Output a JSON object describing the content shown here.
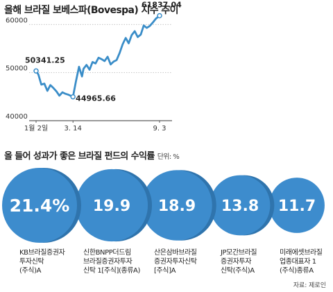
{
  "line_chart": {
    "title": "올해 브라질 보베스파(Bovespa) 지수 추이",
    "chart_data": {
      "type": "line",
      "y_ticks": [
        "60000",
        "50000",
        "40000"
      ],
      "ylim": [
        40000,
        62500
      ],
      "x_labels": [
        "1월 2일",
        "3. 14",
        "9. 3"
      ],
      "annotations": [
        {
          "label": "50341.25",
          "x": 1,
          "y": 50341.25
        },
        {
          "label": "44965.66",
          "x": 50,
          "y": 44965.66
        },
        {
          "label": "61837.04",
          "x": 165,
          "y": 61837.04
        }
      ],
      "series": [
        {
          "color": "#3a8dc8",
          "x": [
            1,
            4,
            8,
            12,
            16,
            20,
            24,
            28,
            32,
            36,
            40,
            44,
            48,
            50,
            54,
            58,
            62,
            64,
            68,
            72,
            76,
            80,
            84,
            88,
            92,
            96,
            100,
            104,
            108,
            112,
            116,
            120,
            124,
            128,
            132,
            136,
            140,
            144,
            148,
            152,
            156,
            160,
            165
          ],
          "y": [
            50341.25,
            49600,
            47500,
            47700,
            46200,
            47400,
            46800,
            46100,
            45200,
            45900,
            45600,
            45400,
            45100,
            44965.66,
            48200,
            51200,
            49200,
            50800,
            51600,
            50600,
            52200,
            51900,
            53100,
            52800,
            52400,
            53300,
            51700,
            52300,
            52600,
            54100,
            55900,
            57200,
            56100,
            57800,
            58600,
            57400,
            57900,
            59800,
            59300,
            59700,
            60400,
            61200,
            61837.04
          ]
        }
      ]
    }
  },
  "funds": {
    "title": "올 들어 성과가 좋은 브라질 펀드의 수익률",
    "unit": "단위: %",
    "chart_data": {
      "type": "bar",
      "categories": [
        "KB브라질증권자투자신탁(주식)A",
        "신한BNPP더드림브라질증권자투자신탁 1[주식](종류A)",
        "산은삼바브라질증권자투자신탁[주식]A",
        "JP모간브라질증권자투자신탁(주식)A",
        "미래에셋브라질업종대표자 1(주식)종류A"
      ],
      "series": [
        {
          "values": [
            21.4,
            19.9,
            18.9,
            13.8,
            11.7
          ]
        }
      ]
    },
    "value_labels": [
      "21.4%",
      "19.9",
      "18.9",
      "13.8",
      "11.7"
    ],
    "labels": [
      "KB브라질증권자\n투자신탁\n(주식)A",
      "신한BNPP더드림\n브라질증권자투자\n신탁 1[주식](종류A)",
      "산은삼바브라질\n증권자투자신탁\n[주식]A",
      "JP모간브라질\n증권자투자\n신탁(주식)A",
      "미래에셋브라질\n업종대표자 1\n(주식)종류A"
    ],
    "colors": {
      "bubble": "#3d8ccd",
      "bubble_dark": "#2f74ad",
      "bubble_text": "#ffffff"
    }
  },
  "source": "자료: 제로인"
}
